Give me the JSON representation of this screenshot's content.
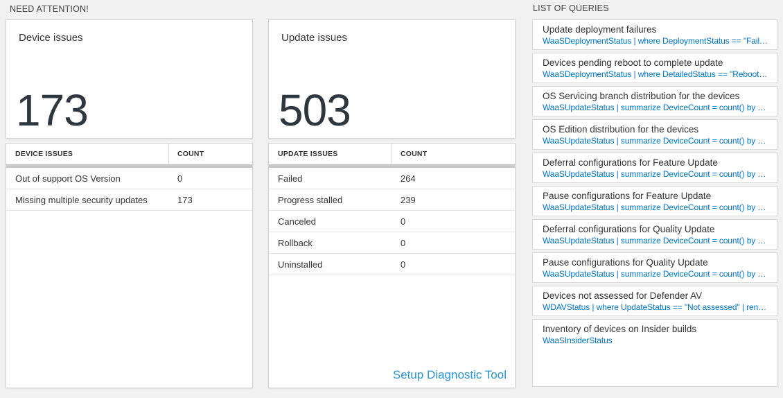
{
  "section_headers": {
    "need_attention": "NEED ATTENTION!",
    "list_of_queries": "LIST OF QUERIES"
  },
  "colors": {
    "query_link_blue": "#0072c6",
    "setup_link_blue": "#2b95d2",
    "big_number_color": "#2e3640",
    "page_background": "#f1f1f2",
    "header_bar_gray": "#c7c7c7"
  },
  "device_tile": {
    "title": "Device issues",
    "count": "173"
  },
  "update_tile": {
    "title": "Update issues",
    "count": "503"
  },
  "device_table": {
    "headers": [
      "DEVICE ISSUES",
      "COUNT"
    ],
    "rows": [
      {
        "label": "Out of support OS Version",
        "count": "0"
      },
      {
        "label": "Missing multiple security updates",
        "count": "173"
      }
    ]
  },
  "update_table": {
    "headers": [
      "UPDATE ISSUES",
      "COUNT"
    ],
    "rows": [
      {
        "label": "Failed",
        "count": "264"
      },
      {
        "label": "Progress stalled",
        "count": "239"
      },
      {
        "label": "Canceled",
        "count": "0"
      },
      {
        "label": "Rollback",
        "count": "0"
      },
      {
        "label": "Uninstalled",
        "count": "0"
      }
    ],
    "footer_link": "Setup Diagnostic Tool"
  },
  "queries": {
    "items": [
      {
        "title": "Update deployment failures",
        "query": "WaaSDeploymentStatus | where DeploymentStatus == \"Failed\" |..."
      },
      {
        "title": "Devices pending reboot to complete update",
        "query": "WaaSDeploymentStatus | where DetailedStatus == \"Reboot pend..."
      },
      {
        "title": "OS Servicing branch distribution for the devices",
        "query": "WaaSUpdateStatus | summarize DeviceCount = count() by OSSer..."
      },
      {
        "title": "OS Edition distribution for the devices",
        "query": "WaaSUpdateStatus | summarize DeviceCount = count() by OSEdit..."
      },
      {
        "title": "Deferral configurations for Feature Update",
        "query": "WaaSUpdateStatus | summarize DeviceCount = count() by Featur..."
      },
      {
        "title": "Pause configurations for Feature Update",
        "query": "WaaSUpdateStatus | summarize DeviceCount = count() by Featur..."
      },
      {
        "title": "Deferral configurations for Quality Update",
        "query": "WaaSUpdateStatus | summarize DeviceCount = count() by Qualit..."
      },
      {
        "title": "Pause configurations for Quality Update",
        "query": "WaaSUpdateStatus | summarize DeviceCount = count() by Qualit..."
      },
      {
        "title": "Devices not assessed for Defender AV",
        "query": "WDAVStatus | where UpdateStatus == \"Not assessed\" | render ta..."
      },
      {
        "title": "Inventory of devices on Insider builds",
        "query": "WaaSInsiderStatus"
      }
    ]
  }
}
